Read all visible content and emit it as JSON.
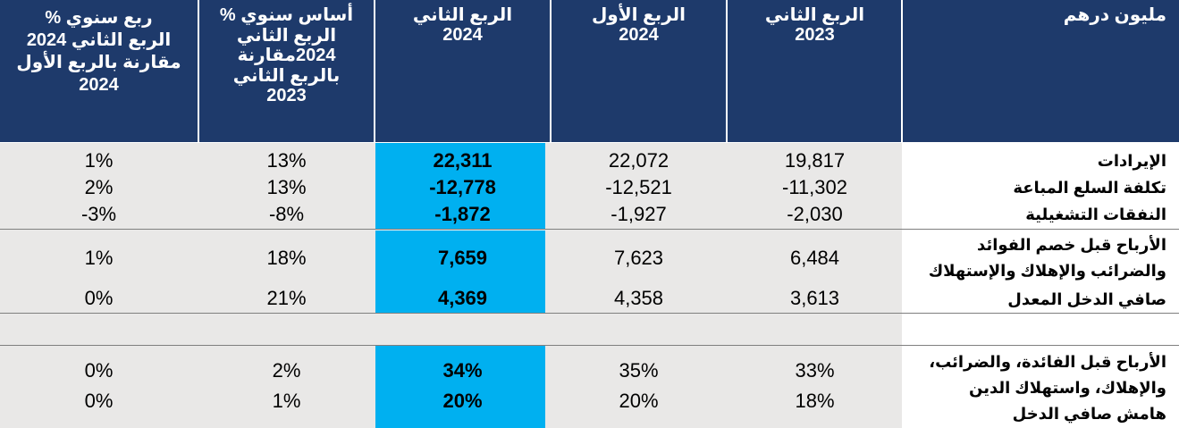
{
  "table": {
    "headers": {
      "unit": "مليون درهم",
      "q2_2023": [
        "الربع الثاني",
        "2023"
      ],
      "q1_2024": [
        "الربع الأول",
        "2024"
      ],
      "q2_2024": [
        "الربع الثاني",
        "2024"
      ],
      "yoy": [
        "أساس سنوي %",
        "الربع الثاني",
        "2024مقارنة",
        "بالربع الثاني",
        "2023"
      ],
      "qoq": [
        "ربع سنوي %",
        "الربع الثاني 2024",
        "مقارنة بالربع الأول",
        "2024"
      ]
    },
    "labels": {
      "revenue": "الإيرادات",
      "cogs": "تكلفة السلع المباعة",
      "opex": "النفقات التشغيلية",
      "ebitda": "الأرباح قبل خصم الفوائد والضرائب والإهلاك والإستهلاك",
      "net_income": "صافي الدخل المعدل",
      "ebitda_margin": "الأرباح قبل الفائدة، والضرائب، والإهلاك، واستهلاك الدين",
      "net_margin": "هامش صافي الدخل"
    },
    "rows": {
      "revenue": {
        "q2_2023": "19,817",
        "q1_2024": "22,072",
        "q2_2024": "22,311",
        "yoy": "13%",
        "qoq": "1%"
      },
      "cogs": {
        "q2_2023": "-11,302",
        "q1_2024": "-12,521",
        "q2_2024": "-12,778",
        "yoy": "13%",
        "qoq": "2%"
      },
      "opex": {
        "q2_2023": "-2,030",
        "q1_2024": "-1,927",
        "q2_2024": "-1,872",
        "yoy": "-8%",
        "qoq": "-3%"
      },
      "ebitda": {
        "q2_2023": "6,484",
        "q1_2024": "7,623",
        "q2_2024": "7,659",
        "yoy": "18%",
        "qoq": "1%"
      },
      "net_income": {
        "q2_2023": "3,613",
        "q1_2024": "4,358",
        "q2_2024": "4,369",
        "yoy": "21%",
        "qoq": "0%"
      },
      "ebitda_margin": {
        "q2_2023": "33%",
        "q1_2024": "35%",
        "q2_2024": "34%",
        "yoy": "2%",
        "qoq": "0%"
      },
      "net_margin": {
        "q2_2023": "18%",
        "q1_2024": "20%",
        "q2_2024": "20%",
        "yoy": "1%",
        "qoq": "0%"
      }
    }
  },
  "colors": {
    "header": "#1e3a6b",
    "highlight": "#00b0f0",
    "body": "#e9e8e7"
  }
}
